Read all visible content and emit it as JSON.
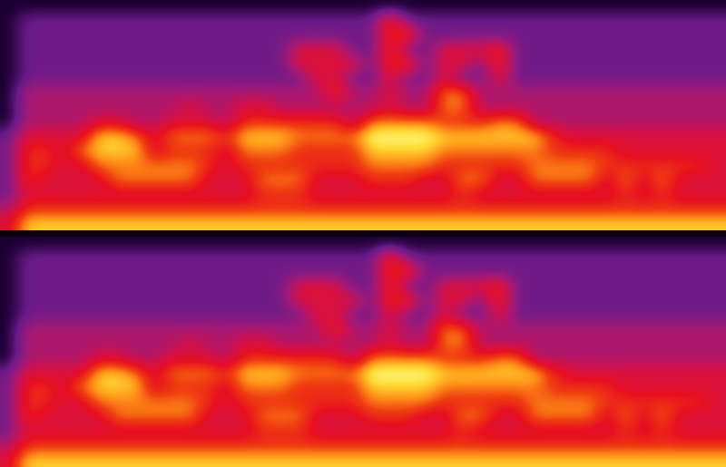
{
  "chart_data": [
    {
      "type": "heatmap",
      "tick_labels": false,
      "cells": [
        [
          2,
          2,
          2,
          2,
          2,
          2,
          2,
          2,
          2,
          2,
          2,
          2,
          2,
          2,
          2,
          2,
          2,
          2,
          2,
          2,
          2,
          2,
          2,
          2,
          2,
          2,
          2,
          2,
          2,
          2,
          2,
          2,
          2,
          2,
          2,
          2,
          2,
          2,
          2,
          2
        ],
        [
          2,
          3,
          3,
          3,
          3,
          3,
          3,
          3,
          3,
          3,
          3,
          3,
          3,
          3,
          3,
          3,
          3,
          3,
          3,
          3,
          3,
          6,
          3,
          3,
          3,
          3,
          3,
          3,
          3,
          3,
          3,
          3,
          3,
          3,
          3,
          3,
          3,
          3,
          3,
          3
        ],
        [
          2,
          3,
          3,
          3,
          3,
          3,
          3,
          3,
          3,
          3,
          3,
          3,
          3,
          3,
          3,
          3,
          3,
          3,
          3,
          3,
          3,
          6,
          6,
          3,
          3,
          3,
          3,
          3,
          3,
          3,
          3,
          3,
          3,
          3,
          3,
          3,
          3,
          3,
          3,
          3
        ],
        [
          2,
          3,
          3,
          3,
          3,
          3,
          3,
          3,
          3,
          3,
          3,
          3,
          3,
          3,
          3,
          3,
          5,
          5,
          5,
          3,
          3,
          6,
          3,
          3,
          5,
          5,
          5,
          6,
          3,
          3,
          3,
          3,
          3,
          3,
          3,
          3,
          3,
          3,
          3,
          3
        ],
        [
          2,
          3,
          3,
          3,
          3,
          3,
          3,
          3,
          3,
          3,
          3,
          3,
          3,
          3,
          3,
          3,
          5,
          5,
          5,
          5,
          3,
          6,
          6,
          3,
          5,
          5,
          3,
          6,
          3,
          3,
          3,
          3,
          3,
          3,
          3,
          3,
          3,
          3,
          3,
          3
        ],
        [
          2,
          3,
          3,
          3,
          3,
          3,
          3,
          3,
          3,
          3,
          3,
          3,
          3,
          3,
          3,
          3,
          3,
          5,
          5,
          3,
          3,
          5,
          3,
          3,
          5,
          3,
          3,
          5,
          3,
          3,
          3,
          3,
          3,
          3,
          3,
          3,
          3,
          3,
          3,
          3
        ],
        [
          2,
          4,
          4,
          4,
          4,
          4,
          4,
          4,
          4,
          4,
          4,
          4,
          4,
          4,
          4,
          4,
          4,
          4,
          6,
          4,
          4,
          5,
          4,
          4,
          7,
          7,
          4,
          4,
          4,
          4,
          4,
          4,
          4,
          4,
          4,
          4,
          4,
          4,
          4,
          4
        ],
        [
          2,
          4,
          4,
          4,
          4,
          4,
          4,
          4,
          4,
          4,
          5,
          4,
          4,
          5,
          5,
          4,
          4,
          4,
          4,
          4,
          4,
          5,
          4,
          4,
          7,
          7,
          4,
          4,
          4,
          4,
          4,
          4,
          4,
          4,
          4,
          4,
          4,
          4,
          4,
          4
        ],
        [
          2,
          4,
          4,
          4,
          4,
          5,
          5,
          4,
          4,
          5,
          5,
          5,
          4,
          6,
          6,
          6,
          6,
          6,
          6,
          4,
          7,
          7,
          7,
          7,
          6,
          6,
          6,
          7,
          7,
          4,
          4,
          4,
          4,
          4,
          4,
          4,
          4,
          4,
          4,
          4
        ],
        [
          3,
          5,
          5,
          5,
          5,
          8,
          8,
          7,
          5,
          7,
          7,
          7,
          6,
          8,
          8,
          8,
          7,
          7,
          7,
          7,
          9,
          9,
          9,
          9,
          8,
          8,
          8,
          8,
          8,
          8,
          6,
          5,
          5,
          5,
          5,
          5,
          5,
          5,
          5,
          5
        ],
        [
          3,
          6,
          6,
          5,
          7,
          8,
          8,
          8,
          5,
          6,
          6,
          6,
          5,
          7,
          7,
          7,
          6,
          6,
          6,
          6,
          8,
          8,
          8,
          8,
          7,
          7,
          7,
          7,
          7,
          7,
          6,
          6,
          6,
          6,
          5,
          5,
          5,
          5,
          5,
          5
        ],
        [
          3,
          6,
          6,
          5,
          5,
          7,
          7,
          7,
          7,
          7,
          7,
          6,
          5,
          6,
          6,
          6,
          6,
          6,
          6,
          6,
          7,
          7,
          7,
          7,
          6,
          6,
          6,
          6,
          6,
          7,
          7,
          7,
          7,
          6,
          6,
          6,
          6,
          6,
          6,
          5
        ],
        [
          3,
          6,
          5,
          5,
          5,
          5,
          7,
          7,
          7,
          7,
          7,
          5,
          5,
          5,
          7,
          7,
          7,
          5,
          5,
          5,
          6,
          6,
          6,
          5,
          5,
          7,
          7,
          5,
          5,
          7,
          7,
          7,
          7,
          5,
          7,
          5,
          7,
          5,
          5,
          5
        ],
        [
          3,
          5,
          5,
          5,
          5,
          5,
          5,
          5,
          5,
          5,
          5,
          5,
          5,
          5,
          6,
          6,
          6,
          5,
          5,
          5,
          5,
          5,
          5,
          5,
          5,
          6,
          5,
          5,
          5,
          5,
          5,
          5,
          5,
          5,
          6,
          5,
          6,
          5,
          5,
          5
        ],
        [
          4,
          6,
          6,
          6,
          6,
          6,
          6,
          6,
          6,
          6,
          6,
          6,
          6,
          6,
          6,
          6,
          6,
          6,
          6,
          6,
          6,
          6,
          6,
          6,
          6,
          6,
          6,
          6,
          6,
          6,
          6,
          6,
          6,
          6,
          6,
          6,
          6,
          6,
          6,
          6
        ],
        [
          5,
          8,
          8,
          8,
          8,
          8,
          8,
          8,
          8,
          8,
          8,
          8,
          8,
          8,
          8,
          8,
          8,
          8,
          8,
          8,
          8,
          8,
          8,
          8,
          8,
          8,
          8,
          8,
          8,
          8,
          8,
          8,
          8,
          8,
          8,
          8,
          8,
          8,
          8,
          8
        ]
      ]
    },
    {
      "type": "heatmap",
      "tick_labels": false,
      "cells": [
        [
          2,
          2,
          2,
          2,
          2,
          2,
          2,
          2,
          2,
          2,
          2,
          2,
          2,
          2,
          2,
          2,
          2,
          2,
          2,
          2,
          2,
          2,
          2,
          2,
          2,
          2,
          2,
          2,
          2,
          2,
          2,
          2,
          2,
          2,
          2,
          2,
          2,
          2,
          2,
          2
        ],
        [
          2,
          3,
          3,
          3,
          3,
          3,
          3,
          3,
          3,
          3,
          3,
          3,
          3,
          3,
          3,
          3,
          3,
          3,
          3,
          3,
          3,
          6,
          3,
          3,
          3,
          3,
          3,
          3,
          3,
          3,
          3,
          3,
          3,
          3,
          3,
          3,
          3,
          3,
          3,
          3
        ],
        [
          2,
          3,
          3,
          3,
          3,
          3,
          3,
          3,
          3,
          3,
          3,
          3,
          3,
          3,
          3,
          3,
          3,
          3,
          3,
          3,
          3,
          6,
          6,
          3,
          3,
          3,
          3,
          3,
          3,
          3,
          3,
          3,
          3,
          3,
          3,
          3,
          3,
          3,
          3,
          3
        ],
        [
          2,
          3,
          3,
          3,
          3,
          3,
          3,
          3,
          3,
          3,
          3,
          3,
          3,
          3,
          3,
          3,
          5,
          5,
          5,
          3,
          3,
          6,
          3,
          3,
          5,
          5,
          5,
          6,
          3,
          3,
          3,
          3,
          3,
          3,
          3,
          3,
          3,
          3,
          3,
          3
        ],
        [
          2,
          3,
          3,
          3,
          3,
          3,
          3,
          3,
          3,
          3,
          3,
          3,
          3,
          3,
          3,
          3,
          5,
          5,
          5,
          5,
          3,
          6,
          6,
          3,
          5,
          5,
          3,
          6,
          3,
          3,
          3,
          3,
          3,
          3,
          3,
          3,
          3,
          3,
          3,
          3
        ],
        [
          2,
          3,
          3,
          3,
          3,
          3,
          3,
          3,
          3,
          3,
          3,
          3,
          3,
          3,
          3,
          3,
          3,
          5,
          5,
          3,
          3,
          5,
          3,
          3,
          5,
          3,
          3,
          5,
          3,
          3,
          3,
          3,
          3,
          3,
          3,
          3,
          3,
          3,
          3,
          3
        ],
        [
          2,
          4,
          4,
          4,
          4,
          4,
          4,
          4,
          4,
          4,
          4,
          4,
          4,
          4,
          4,
          4,
          4,
          4,
          6,
          4,
          4,
          5,
          4,
          4,
          7,
          7,
          4,
          4,
          4,
          4,
          4,
          4,
          4,
          4,
          4,
          4,
          4,
          4,
          4,
          4
        ],
        [
          2,
          4,
          4,
          4,
          4,
          4,
          4,
          4,
          4,
          4,
          5,
          4,
          4,
          5,
          5,
          4,
          4,
          4,
          4,
          4,
          4,
          5,
          4,
          4,
          7,
          7,
          4,
          4,
          4,
          4,
          4,
          4,
          4,
          4,
          4,
          4,
          4,
          4,
          4,
          4
        ],
        [
          2,
          4,
          4,
          4,
          4,
          5,
          5,
          4,
          4,
          5,
          5,
          5,
          4,
          6,
          6,
          6,
          6,
          6,
          6,
          4,
          7,
          7,
          7,
          7,
          6,
          6,
          6,
          7,
          7,
          4,
          4,
          4,
          4,
          4,
          4,
          4,
          4,
          4,
          4,
          4
        ],
        [
          3,
          5,
          5,
          5,
          5,
          8,
          8,
          7,
          5,
          7,
          7,
          7,
          6,
          8,
          8,
          8,
          7,
          7,
          7,
          7,
          9,
          9,
          9,
          9,
          8,
          8,
          8,
          8,
          8,
          8,
          6,
          5,
          5,
          5,
          5,
          5,
          5,
          5,
          5,
          5
        ],
        [
          3,
          6,
          6,
          5,
          7,
          8,
          8,
          8,
          5,
          6,
          6,
          6,
          5,
          7,
          7,
          7,
          6,
          6,
          6,
          6,
          8,
          8,
          8,
          8,
          7,
          7,
          7,
          7,
          7,
          7,
          6,
          6,
          6,
          6,
          5,
          5,
          5,
          5,
          5,
          5
        ],
        [
          3,
          6,
          6,
          5,
          5,
          7,
          7,
          7,
          7,
          7,
          7,
          6,
          5,
          6,
          6,
          6,
          6,
          6,
          6,
          6,
          7,
          7,
          7,
          7,
          6,
          6,
          6,
          6,
          6,
          7,
          7,
          7,
          7,
          6,
          6,
          6,
          6,
          6,
          6,
          5
        ],
        [
          3,
          6,
          5,
          5,
          5,
          5,
          7,
          7,
          7,
          7,
          7,
          5,
          5,
          5,
          7,
          7,
          7,
          5,
          5,
          5,
          6,
          6,
          6,
          5,
          5,
          7,
          7,
          5,
          5,
          7,
          7,
          7,
          7,
          5,
          7,
          5,
          7,
          5,
          5,
          5
        ],
        [
          3,
          5,
          5,
          5,
          5,
          5,
          5,
          5,
          5,
          5,
          5,
          5,
          5,
          5,
          6,
          6,
          6,
          5,
          5,
          5,
          5,
          5,
          5,
          5,
          5,
          6,
          5,
          5,
          5,
          5,
          5,
          5,
          5,
          5,
          6,
          5,
          6,
          5,
          5,
          5
        ],
        [
          4,
          6,
          6,
          6,
          6,
          6,
          6,
          6,
          6,
          6,
          6,
          6,
          6,
          6,
          6,
          6,
          6,
          6,
          6,
          6,
          6,
          6,
          6,
          6,
          6,
          6,
          6,
          6,
          6,
          6,
          6,
          6,
          6,
          6,
          6,
          6,
          6,
          6,
          6,
          6
        ],
        [
          5,
          8,
          8,
          8,
          8,
          8,
          8,
          8,
          8,
          8,
          8,
          8,
          8,
          8,
          8,
          8,
          8,
          8,
          8,
          8,
          8,
          8,
          8,
          8,
          8,
          8,
          8,
          8,
          8,
          8,
          8,
          8,
          8,
          8,
          8,
          8,
          8,
          8,
          8,
          8
        ]
      ]
    }
  ]
}
